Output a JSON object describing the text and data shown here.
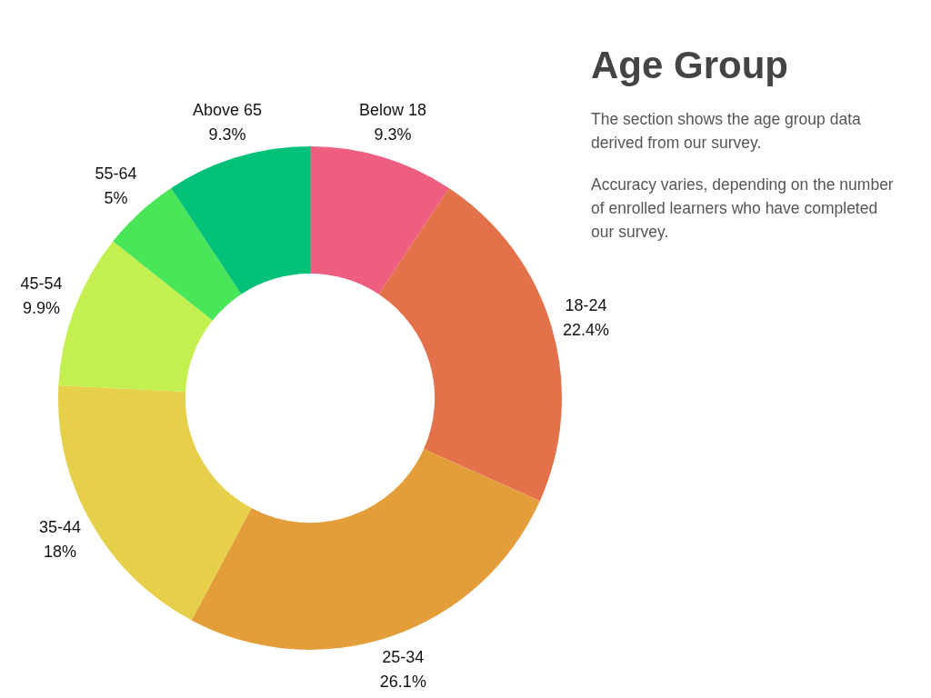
{
  "chart_data": {
    "type": "donut",
    "title": "Age Group",
    "subtitle": "The section shows the age group data derived from our survey.",
    "annotations": [
      "Accuracy varies, depending on the number of enrolled learners who have completed our survey."
    ],
    "categories": [
      "Below 18",
      "18-24",
      "25-34",
      "35-44",
      "45-54",
      "55-64",
      "Above 65"
    ],
    "values": [
      9.3,
      22.4,
      26.1,
      18,
      9.9,
      5,
      9.3
    ],
    "value_labels": [
      "9.3%",
      "22.4%",
      "26.1%",
      "18%",
      "9.9%",
      "5%",
      "9.3%"
    ],
    "colors": [
      "#ee5e7e",
      "#e3714a",
      "#e39e3a",
      "#e6d04a",
      "#c3f04e",
      "#4ae659",
      "#00c177"
    ],
    "legend": false
  }
}
